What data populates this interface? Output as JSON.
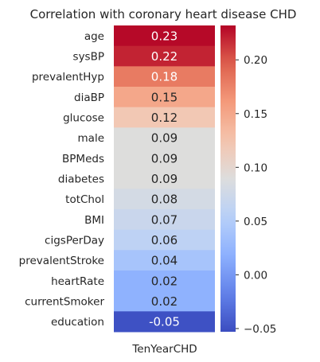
{
  "chart_data": {
    "type": "heatmap",
    "title": "Correlation with coronary heart disease CHD",
    "columns": [
      "TenYearCHD"
    ],
    "rows": [
      "age",
      "sysBP",
      "prevalentHyp",
      "diaBP",
      "glucose",
      "male",
      "BPMeds",
      "diabetes",
      "totChol",
      "BMI",
      "cigsPerDay",
      "prevalentStroke",
      "heartRate",
      "currentSmoker",
      "education"
    ],
    "values": [
      0.23,
      0.22,
      0.18,
      0.15,
      0.12,
      0.09,
      0.09,
      0.09,
      0.08,
      0.07,
      0.06,
      0.04,
      0.02,
      0.02,
      -0.05
    ],
    "annotations": [
      "0.23",
      "0.22",
      "0.18",
      "0.15",
      "0.12",
      "0.09",
      "0.09",
      "0.09",
      "0.08",
      "0.07",
      "0.06",
      "0.04",
      "0.02",
      "0.02",
      "-0.05"
    ],
    "colormap": "coolwarm",
    "vmin": -0.053,
    "vmax": 0.232,
    "colorbar_ticks": [
      -0.05,
      0.0,
      0.05,
      0.1,
      0.15,
      0.2
    ],
    "colorbar_tick_labels": [
      "−0.05",
      "0.00",
      "0.05",
      "0.10",
      "0.15",
      "0.20"
    ]
  }
}
